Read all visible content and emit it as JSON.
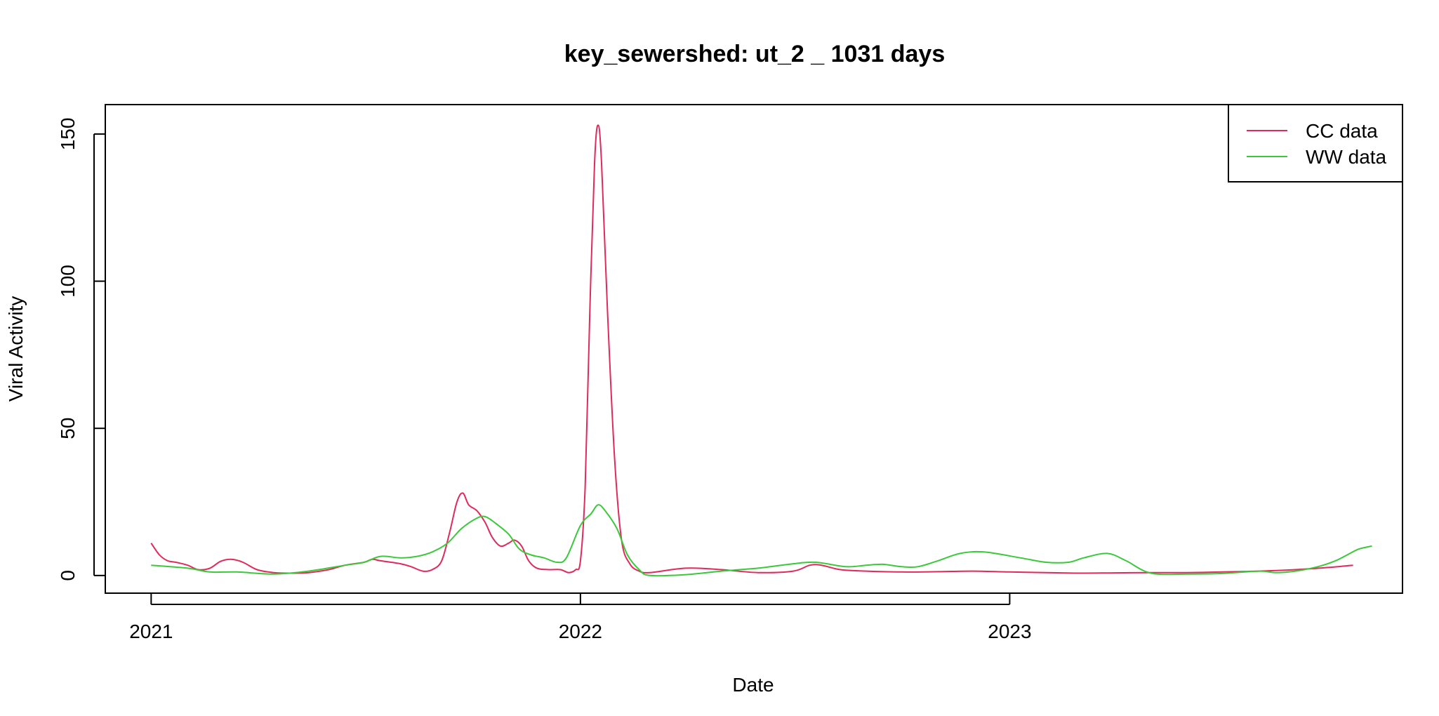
{
  "chart_data": {
    "type": "line",
    "title": "key_sewershed:  ut_2 _ 1031  days",
    "xlabel": "Date",
    "ylabel": "Viral Activity",
    "x_ticks": [
      "2021",
      "2022",
      "2023"
    ],
    "y_ticks": [
      "0",
      "50",
      "100",
      "150"
    ],
    "xlim": [
      "2020-11-23",
      "2023-12-01"
    ],
    "ylim": [
      -6,
      160
    ],
    "grid": false,
    "legend_position": "top-right",
    "series": [
      {
        "name": "CC data",
        "color": "#DF2A5C",
        "points": [
          [
            "2021-01-01",
            11
          ],
          [
            "2021-01-08",
            7
          ],
          [
            "2021-01-15",
            5
          ],
          [
            "2021-01-22",
            4.5
          ],
          [
            "2021-02-01",
            3.5
          ],
          [
            "2021-02-10",
            2
          ],
          [
            "2021-02-20",
            2.5
          ],
          [
            "2021-03-01",
            4.8
          ],
          [
            "2021-03-10",
            5.5
          ],
          [
            "2021-03-20",
            4.5
          ],
          [
            "2021-04-01",
            2
          ],
          [
            "2021-04-15",
            1
          ],
          [
            "2021-05-01",
            0.8
          ],
          [
            "2021-05-15",
            1
          ],
          [
            "2021-06-01",
            2
          ],
          [
            "2021-06-15",
            3.5
          ],
          [
            "2021-07-01",
            4.5
          ],
          [
            "2021-07-08",
            5.5
          ],
          [
            "2021-07-15",
            5
          ],
          [
            "2021-08-01",
            4
          ],
          [
            "2021-08-10",
            3
          ],
          [
            "2021-08-20",
            1.5
          ],
          [
            "2021-08-28",
            2
          ],
          [
            "2021-09-05",
            5
          ],
          [
            "2021-09-12",
            15
          ],
          [
            "2021-09-18",
            25
          ],
          [
            "2021-09-23",
            28
          ],
          [
            "2021-09-28",
            24
          ],
          [
            "2021-10-05",
            22
          ],
          [
            "2021-10-12",
            18
          ],
          [
            "2021-10-18",
            13
          ],
          [
            "2021-10-25",
            10
          ],
          [
            "2021-11-01",
            11
          ],
          [
            "2021-11-06",
            12
          ],
          [
            "2021-11-12",
            10
          ],
          [
            "2021-11-18",
            5
          ],
          [
            "2021-11-25",
            2.5
          ],
          [
            "2021-12-05",
            2
          ],
          [
            "2021-12-15",
            2
          ],
          [
            "2021-12-22",
            1
          ],
          [
            "2021-12-28",
            2
          ],
          [
            "2022-01-01",
            5
          ],
          [
            "2022-01-05",
            30
          ],
          [
            "2022-01-09",
            90
          ],
          [
            "2022-01-13",
            140
          ],
          [
            "2022-01-16",
            153
          ],
          [
            "2022-01-19",
            140
          ],
          [
            "2022-01-24",
            90
          ],
          [
            "2022-01-30",
            40
          ],
          [
            "2022-02-05",
            12
          ],
          [
            "2022-02-12",
            4
          ],
          [
            "2022-02-20",
            1.5
          ],
          [
            "2022-03-01",
            1
          ],
          [
            "2022-04-01",
            2.5
          ],
          [
            "2022-05-01",
            2
          ],
          [
            "2022-06-01",
            1
          ],
          [
            "2022-07-01",
            1.5
          ],
          [
            "2022-07-15",
            3.5
          ],
          [
            "2022-07-25",
            3.5
          ],
          [
            "2022-08-10",
            2
          ],
          [
            "2022-09-01",
            1.5
          ],
          [
            "2022-10-01",
            1.2
          ],
          [
            "2022-11-01",
            1.3
          ],
          [
            "2022-12-01",
            1.5
          ],
          [
            "2023-01-01",
            1.2
          ],
          [
            "2023-02-01",
            1
          ],
          [
            "2023-03-01",
            0.8
          ],
          [
            "2023-04-01",
            0.9
          ],
          [
            "2023-05-01",
            1
          ],
          [
            "2023-06-01",
            1
          ],
          [
            "2023-07-01",
            1.2
          ],
          [
            "2023-08-01",
            1.5
          ],
          [
            "2023-09-01",
            2
          ],
          [
            "2023-10-01",
            2.8
          ],
          [
            "2023-10-20",
            3.5
          ]
        ]
      },
      {
        "name": "WW data",
        "color": "#3BC83B",
        "points": [
          [
            "2021-01-01",
            3.5
          ],
          [
            "2021-02-01",
            2.5
          ],
          [
            "2021-02-20",
            1.2
          ],
          [
            "2021-03-15",
            1.2
          ],
          [
            "2021-04-15",
            0.5
          ],
          [
            "2021-05-15",
            1.5
          ],
          [
            "2021-06-15",
            3.5
          ],
          [
            "2021-07-01",
            4.5
          ],
          [
            "2021-07-15",
            6.5
          ],
          [
            "2021-08-01",
            6
          ],
          [
            "2021-08-15",
            6.5
          ],
          [
            "2021-08-28",
            8
          ],
          [
            "2021-09-10",
            11
          ],
          [
            "2021-09-22",
            16
          ],
          [
            "2021-10-05",
            19.5
          ],
          [
            "2021-10-12",
            20
          ],
          [
            "2021-10-20",
            18
          ],
          [
            "2021-11-01",
            14
          ],
          [
            "2021-11-10",
            9
          ],
          [
            "2021-11-20",
            7
          ],
          [
            "2021-12-01",
            6
          ],
          [
            "2021-12-12",
            4.5
          ],
          [
            "2021-12-20",
            6
          ],
          [
            "2022-01-01",
            17
          ],
          [
            "2022-01-10",
            21
          ],
          [
            "2022-01-16",
            24
          ],
          [
            "2022-01-22",
            22
          ],
          [
            "2022-02-01",
            16
          ],
          [
            "2022-02-10",
            7
          ],
          [
            "2022-02-20",
            2
          ],
          [
            "2022-03-01",
            0
          ],
          [
            "2022-04-01",
            0.3
          ],
          [
            "2022-05-01",
            1.5
          ],
          [
            "2022-06-01",
            2.5
          ],
          [
            "2022-07-01",
            4
          ],
          [
            "2022-07-20",
            4.5
          ],
          [
            "2022-08-15",
            3
          ],
          [
            "2022-09-01",
            3.5
          ],
          [
            "2022-09-15",
            3.8
          ],
          [
            "2022-10-01",
            3
          ],
          [
            "2022-10-15",
            3
          ],
          [
            "2022-11-01",
            5
          ],
          [
            "2022-11-20",
            7.5
          ],
          [
            "2022-12-10",
            8
          ],
          [
            "2023-01-10",
            6
          ],
          [
            "2023-02-01",
            4.5
          ],
          [
            "2023-02-20",
            4.5
          ],
          [
            "2023-03-05",
            6
          ],
          [
            "2023-03-25",
            7.5
          ],
          [
            "2023-04-10",
            5
          ],
          [
            "2023-05-01",
            0.8
          ],
          [
            "2023-06-01",
            0.5
          ],
          [
            "2023-07-01",
            0.7
          ],
          [
            "2023-08-01",
            1.5
          ],
          [
            "2023-08-15",
            1
          ],
          [
            "2023-09-01",
            1.5
          ],
          [
            "2023-09-20",
            3
          ],
          [
            "2023-10-05",
            5
          ],
          [
            "2023-10-15",
            7
          ],
          [
            "2023-10-25",
            9
          ],
          [
            "2023-11-05",
            10
          ]
        ]
      }
    ]
  }
}
